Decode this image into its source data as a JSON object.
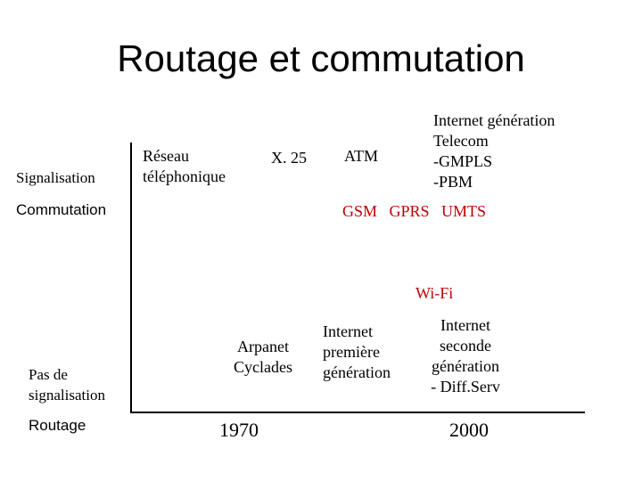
{
  "title": "Routage et commutation",
  "axes": {
    "top_left": "Signalisation",
    "mid_left": "Commutation",
    "bottom_left_line1": "Pas de",
    "bottom_left_line2": "signalisation",
    "bottom_corner": "Routage"
  },
  "items": {
    "reseau_line1": "Réseau",
    "reseau_line2": "téléphonique",
    "x25": "X. 25",
    "atm": "ATM",
    "inet_telecom_line1": "Internet génération",
    "inet_telecom_line2": "Telecom",
    "inet_telecom_line3": "-GMPLS",
    "inet_telecom_line4": "-PBM",
    "mobile": "GSM   GPRS   UMTS",
    "wifi": "Wi-Fi",
    "arpanet_line1": "Arpanet",
    "arpanet_line2": "Cyclades",
    "inet1_line1": "Internet",
    "inet1_line2": "première",
    "inet1_line3": "génération",
    "inet2_line1": "Internet",
    "inet2_line2": "seconde",
    "inet2_line3": "génération",
    "inet2_line4": "- Diff.Serv"
  },
  "years": {
    "y1970": "1970",
    "y2000": "2000"
  },
  "colors": {
    "highlight": "#c00000"
  }
}
